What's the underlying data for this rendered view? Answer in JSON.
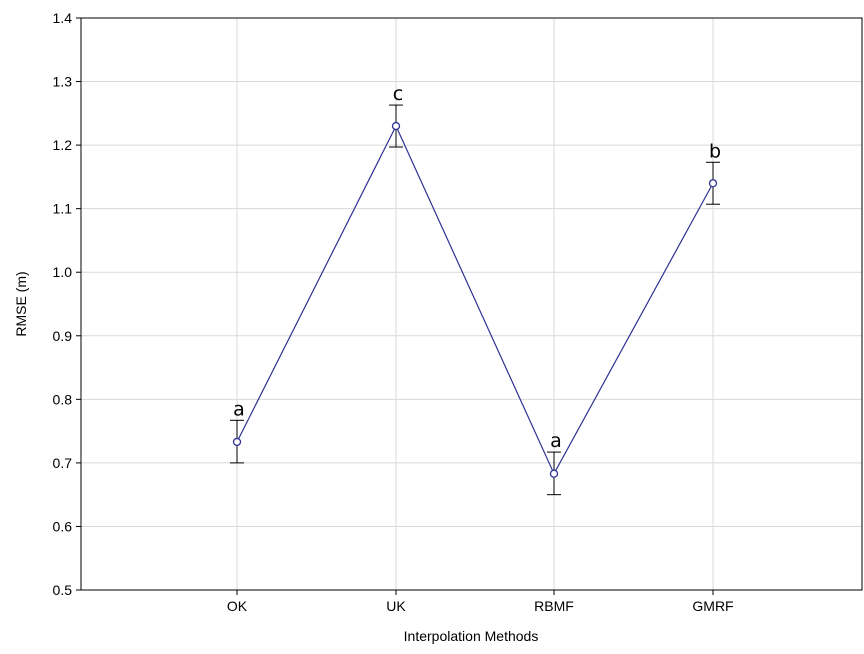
{
  "chart_data": {
    "type": "line",
    "title": "",
    "xlabel": "Interpolation Methods",
    "ylabel": "RMSE (m)",
    "categories": [
      "OK",
      "UK",
      "RBMF",
      "GMRF"
    ],
    "ylim": [
      0.5,
      1.4
    ],
    "yticks": [
      "0.5",
      "0.6",
      "0.7",
      "0.8",
      "0.9",
      "1.0",
      "1.1",
      "1.2",
      "1.3",
      "1.4"
    ],
    "grid": true,
    "series": [
      {
        "values": [
          0.733,
          1.23,
          0.683,
          1.14
        ],
        "error_low": [
          0.7,
          1.197,
          0.65,
          1.107
        ],
        "error_high": [
          0.767,
          1.263,
          0.717,
          1.173
        ],
        "labels": [
          "a",
          "c",
          "a",
          "b"
        ]
      }
    ],
    "colors": {
      "series": "#2e3192",
      "grid": "#d9d9d9",
      "axis": "#000000"
    }
  }
}
